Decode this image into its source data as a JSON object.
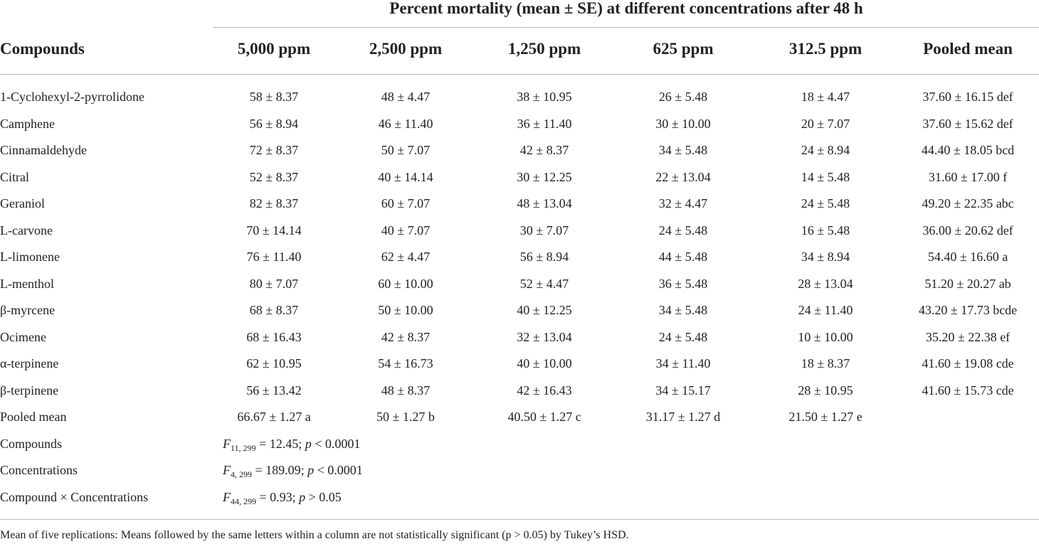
{
  "table": {
    "title": "Percent mortality (mean ± SE) at different concentrations after 48 h",
    "columns": [
      "Compounds",
      "5,000 ppm",
      "2,500 ppm",
      "1,250 ppm",
      "625 ppm",
      "312.5 ppm",
      "Pooled mean"
    ],
    "rows": [
      [
        "1-Cyclohexyl-2-pyrrolidone",
        "58 ± 8.37",
        "48 ± 4.47",
        "38 ± 10.95",
        "26 ± 5.48",
        "18 ± 4.47",
        "37.60 ± 16.15 def"
      ],
      [
        "Camphene",
        "56 ± 8.94",
        "46 ± 11.40",
        "36 ± 11.40",
        "30 ± 10.00",
        "20 ± 7.07",
        "37.60 ± 15.62 def"
      ],
      [
        "Cinnamaldehyde",
        "72 ± 8.37",
        "50 ± 7.07",
        "42 ± 8.37",
        "34 ± 5.48",
        "24 ± 8.94",
        "44.40 ± 18.05 bcd"
      ],
      [
        "Citral",
        "52 ± 8.37",
        "40 ± 14.14",
        "30 ± 12.25",
        "22 ± 13.04",
        "14 ± 5.48",
        "31.60 ± 17.00 f"
      ],
      [
        "Geraniol",
        "82 ± 8.37",
        "60 ± 7.07",
        "48 ± 13.04",
        "32 ± 4.47",
        "24 ± 5.48",
        "49.20 ± 22.35 abc"
      ],
      [
        "L-carvone",
        "70 ± 14.14",
        "40 ± 7.07",
        "30 ± 7.07",
        "24 ± 5.48",
        "16 ± 5.48",
        "36.00 ± 20.62 def"
      ],
      [
        "L-limonene",
        "76 ± 11.40",
        "62 ± 4.47",
        "56 ± 8.94",
        "44 ± 5.48",
        "34 ± 8.94",
        "54.40 ± 16.60 a"
      ],
      [
        "L-menthol",
        "80 ± 7.07",
        "60 ± 10.00",
        "52 ± 4.47",
        "36 ± 5.48",
        "28 ± 13.04",
        "51.20 ± 20.27 ab"
      ],
      [
        "β-myrcene",
        "68 ± 8.37",
        "50 ± 10.00",
        "40 ± 12.25",
        "34 ± 5.48",
        "24 ± 11.40",
        "43.20 ± 17.73 bcde"
      ],
      [
        "Ocimene",
        "68 ± 16.43",
        "42 ± 8.37",
        "32 ± 13.04",
        "24 ± 5.48",
        "10 ± 10.00",
        "35.20 ± 22.38 ef"
      ],
      [
        "α-terpinene",
        "62 ± 10.95",
        "54 ± 16.73",
        "40 ± 10.00",
        "34 ± 11.40",
        "18 ± 8.37",
        "41.60 ± 19.08 cde"
      ],
      [
        "β-terpinene",
        "56 ± 13.42",
        "48 ± 8.37",
        "42 ± 16.43",
        "34 ± 15.17",
        "28 ± 10.95",
        "41.60 ± 15.73 cde"
      ],
      [
        "Pooled mean",
        "66.67 ± 1.27 a",
        "50 ± 1.27 b",
        "40.50 ± 1.27 c",
        "31.17 ± 1.27 d",
        "21.50 ± 1.27 e"
      ]
    ],
    "stats": [
      {
        "label": "Compounds",
        "segments": [
          {
            "text": "F",
            "style": "italic"
          },
          {
            "text": "11, 299",
            "style": "sub"
          },
          {
            "text": " = 12.45; ",
            "style": "normal"
          },
          {
            "text": "p",
            "style": "italic"
          },
          {
            "text": " < 0.0001",
            "style": "normal"
          }
        ]
      },
      {
        "label": "Concentrations",
        "segments": [
          {
            "text": "F",
            "style": "italic"
          },
          {
            "text": "4, 299",
            "style": "sub"
          },
          {
            "text": " = 189.09; ",
            "style": "normal"
          },
          {
            "text": "p",
            "style": "italic"
          },
          {
            "text": " < 0.0001",
            "style": "normal"
          }
        ]
      },
      {
        "label": "Compound × Concentrations",
        "segments": [
          {
            "text": "F",
            "style": "italic"
          },
          {
            "text": "44, 299",
            "style": "sub"
          },
          {
            "text": " = 0.93; ",
            "style": "normal"
          },
          {
            "text": "p",
            "style": "italic"
          },
          {
            "text": " > 0.05",
            "style": "normal"
          }
        ]
      }
    ],
    "footnote": "Mean of five replications: Means followed by the same letters within a column are not statistically significant (p > 0.05) by Tukey’s HSD."
  }
}
